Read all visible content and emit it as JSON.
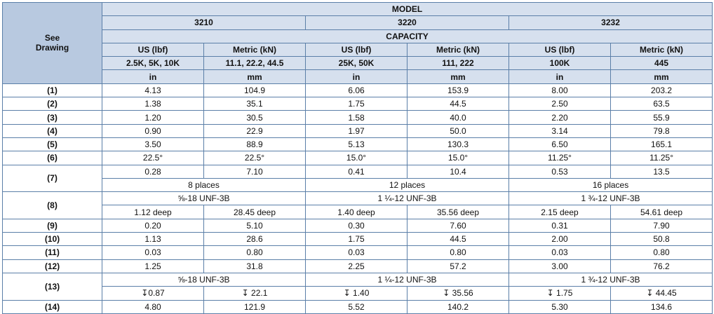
{
  "header": {
    "model_label": "MODEL",
    "see_drawing_line1": "See",
    "see_drawing_line2": "Drawing",
    "capacity_label": "CAPACITY",
    "models": [
      "3210",
      "3220",
      "3232"
    ],
    "unit_headers": [
      "US (lbf)",
      "Metric (kN)",
      "US (lbf)",
      "Metric (kN)",
      "US (lbf)",
      "Metric (kN)"
    ],
    "capacities": [
      "2.5K, 5K, 10K",
      "11.1, 22.2, 44.5",
      "25K, 50K",
      "111, 222",
      "100K",
      "445"
    ],
    "dimension_units": [
      "in",
      "mm",
      "in",
      "mm",
      "in",
      "mm"
    ]
  },
  "rows": {
    "r1": {
      "label": "(1)",
      "values": [
        "4.13",
        "104.9",
        "6.06",
        "153.9",
        "8.00",
        "203.2"
      ]
    },
    "r2": {
      "label": "(2)",
      "values": [
        "1.38",
        "35.1",
        "1.75",
        "44.5",
        "2.50",
        "63.5"
      ]
    },
    "r3": {
      "label": "(3)",
      "values": [
        "1.20",
        "30.5",
        "1.58",
        "40.0",
        "2.20",
        "55.9"
      ]
    },
    "r4": {
      "label": "(4)",
      "values": [
        "0.90",
        "22.9",
        "1.97",
        "50.0",
        "3.14",
        "79.8"
      ]
    },
    "r5": {
      "label": "(5)",
      "values": [
        "3.50",
        "88.9",
        "5.13",
        "130.3",
        "6.50",
        "165.1"
      ]
    },
    "r6": {
      "label": "(6)",
      "values": [
        "22.5°",
        "22.5°",
        "15.0°",
        "15.0°",
        "11.25°",
        "11.25°"
      ]
    },
    "r7": {
      "label": "(7)",
      "values": [
        "0.28",
        "7.10",
        "0.41",
        "10.4",
        "0.53",
        "13.5"
      ],
      "places": [
        "8 places",
        "12 places",
        "16 places"
      ]
    },
    "r8": {
      "label": "(8)",
      "threads": [
        "⅝-18 UNF-3B",
        "1 ¼-12 UNF-3B",
        "1 ¾-12 UNF-3B"
      ],
      "values": [
        "1.12 deep",
        "28.45 deep",
        "1.40 deep",
        "35.56 deep",
        "2.15 deep",
        "54.61 deep"
      ]
    },
    "r9": {
      "label": "(9)",
      "values": [
        "0.20",
        "5.10",
        "0.30",
        "7.60",
        "0.31",
        "7.90"
      ]
    },
    "r10": {
      "label": "(10)",
      "values": [
        "1.13",
        "28.6",
        "1.75",
        "44.5",
        "2.00",
        "50.8"
      ]
    },
    "r11": {
      "label": "(11)",
      "values": [
        "0.03",
        "0.80",
        "0.03",
        "0.80",
        "0.03",
        "0.80"
      ]
    },
    "r12": {
      "label": "(12)",
      "values": [
        "1.25",
        "31.8",
        "2.25",
        "57.2",
        "3.00",
        "76.2"
      ]
    },
    "r13": {
      "label": "(13)",
      "threads": [
        "⅝-18 UNF-3B",
        "1 ¼-12 UNF-3B",
        "1 ¾-12 UNF-3B"
      ],
      "values": [
        "↧0.87",
        "↧ 22.1",
        "↧ 1.40",
        "↧ 35.56",
        "↧ 1.75",
        "↧ 44.45"
      ]
    },
    "r14": {
      "label": "(14)",
      "values": [
        "4.80",
        "121.9",
        "5.52",
        "140.2",
        "5.30",
        "134.6"
      ]
    }
  }
}
